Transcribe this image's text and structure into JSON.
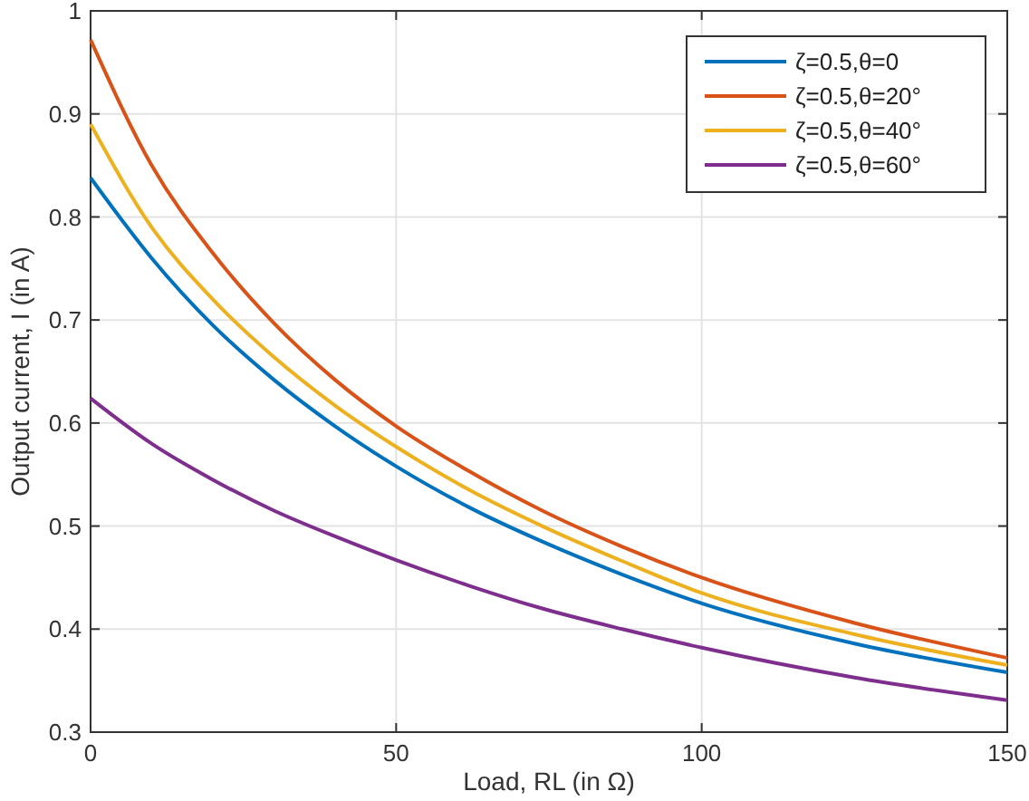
{
  "chart_data": {
    "type": "line",
    "xlabel": "Load, RL (in Ω)",
    "ylabel": "Output current, I (in A)",
    "xlim": [
      0,
      150
    ],
    "xticks": [
      0,
      50,
      100,
      150
    ],
    "ylim": [
      0.3,
      1
    ],
    "yticks": [
      0.3,
      0.4,
      0.5,
      0.6,
      0.7,
      0.8,
      0.9,
      1
    ],
    "grid": true,
    "legend": "top right",
    "series": [
      {
        "name": "ζ=0.5,θ=0",
        "color": "#0072bd",
        "x": [
          0,
          10,
          20,
          30,
          40,
          50,
          62,
          73.9,
          87,
          100,
          125,
          150
        ],
        "values": [
          0.838,
          0.76,
          0.695,
          0.642,
          0.597,
          0.558,
          0.518,
          0.485,
          0.453,
          0.425,
          0.386,
          0.358
        ]
      },
      {
        "name": "ζ=0.5,θ=20°",
        "color": "#d95319",
        "x": [
          0,
          10,
          20,
          30,
          40,
          50,
          62,
          73.9,
          87,
          100,
          125,
          150
        ],
        "values": [
          0.972,
          0.85,
          0.765,
          0.697,
          0.642,
          0.597,
          0.553,
          0.515,
          0.48,
          0.45,
          0.406,
          0.372
        ]
      },
      {
        "name": "ζ=0.5,θ=40°",
        "color": "#edb120",
        "x": [
          0,
          10,
          20,
          30,
          40,
          50,
          62,
          73.9,
          87,
          100,
          125,
          150
        ],
        "values": [
          0.89,
          0.79,
          0.72,
          0.664,
          0.617,
          0.577,
          0.535,
          0.5,
          0.466,
          0.435,
          0.395,
          0.365
        ]
      },
      {
        "name": "ζ=0.5,θ=60°",
        "color": "#7e2f8e",
        "x": [
          0,
          10,
          20,
          30,
          40,
          50,
          62,
          73.9,
          87,
          100,
          125,
          150
        ],
        "values": [
          0.624,
          0.58,
          0.545,
          0.515,
          0.49,
          0.467,
          0.442,
          0.42,
          0.4,
          0.382,
          0.353,
          0.331
        ]
      }
    ]
  }
}
